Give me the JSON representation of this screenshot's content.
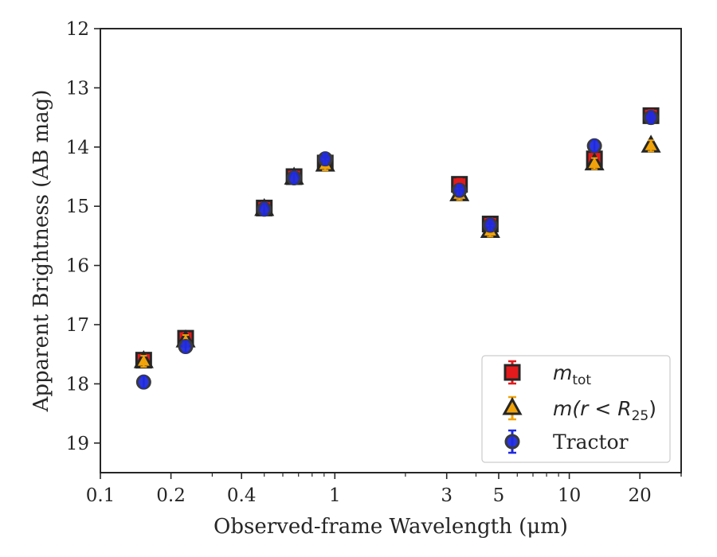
{
  "chart_data": {
    "type": "scatter",
    "title": "",
    "xlabel": "Observed-frame Wavelength (μm)",
    "ylabel": "Apparent Brightness (AB mag)",
    "xscale": "log",
    "xlim": [
      0.1,
      30
    ],
    "ylim": [
      19.5,
      12
    ],
    "y_inverted": true,
    "x_ticks": [
      0.1,
      0.2,
      0.4,
      1,
      3,
      5,
      10,
      20
    ],
    "x_tick_labels": [
      "0.1",
      "0.2",
      "0.4",
      "1",
      "3",
      "5",
      "10",
      "20"
    ],
    "y_ticks": [
      12,
      13,
      14,
      15,
      16,
      17,
      18,
      19
    ],
    "y_tick_labels": [
      "12",
      "13",
      "14",
      "15",
      "16",
      "17",
      "18",
      "19"
    ],
    "grid": false,
    "legend_position": "lower-right",
    "series": [
      {
        "name": "m_tot",
        "legend_main": "m",
        "legend_sub": "tot",
        "marker": "square",
        "color": "#e41a1c",
        "edge_color": "#262626",
        "points": [
          {
            "x": 0.153,
            "y": 17.6
          },
          {
            "x": 0.231,
            "y": 17.23
          },
          {
            "x": 0.5,
            "y": 15.03
          },
          {
            "x": 0.67,
            "y": 14.5
          },
          {
            "x": 0.91,
            "y": 14.27
          },
          {
            "x": 3.4,
            "y": 14.63
          },
          {
            "x": 4.6,
            "y": 15.3
          },
          {
            "x": 12.8,
            "y": 14.2
          },
          {
            "x": 22.3,
            "y": 13.47
          }
        ]
      },
      {
        "name": "m(r < R_25)",
        "legend_main": "m(r < R",
        "legend_sub": "25",
        "legend_close": ")",
        "marker": "triangle",
        "color": "#f0a30a",
        "edge_color": "#262626",
        "points": [
          {
            "x": 0.153,
            "y": 17.62
          },
          {
            "x": 0.231,
            "y": 17.27
          },
          {
            "x": 0.5,
            "y": 15.05
          },
          {
            "x": 0.67,
            "y": 14.52
          },
          {
            "x": 0.91,
            "y": 14.3
          },
          {
            "x": 3.4,
            "y": 14.8
          },
          {
            "x": 4.6,
            "y": 15.42
          },
          {
            "x": 12.8,
            "y": 14.28
          },
          {
            "x": 22.3,
            "y": 13.98
          }
        ]
      },
      {
        "name": "Tractor",
        "legend_main": "Tractor",
        "marker": "circle",
        "color": "#1f2adf",
        "edge_color": "#3a3a3a",
        "points": [
          {
            "x": 0.153,
            "y": 17.97
          },
          {
            "x": 0.231,
            "y": 17.37
          },
          {
            "x": 0.5,
            "y": 15.05
          },
          {
            "x": 0.67,
            "y": 14.52
          },
          {
            "x": 0.91,
            "y": 14.2
          },
          {
            "x": 3.4,
            "y": 14.73
          },
          {
            "x": 4.6,
            "y": 15.32
          },
          {
            "x": 12.8,
            "y": 13.98
          },
          {
            "x": 22.3,
            "y": 13.5
          }
        ]
      }
    ]
  }
}
